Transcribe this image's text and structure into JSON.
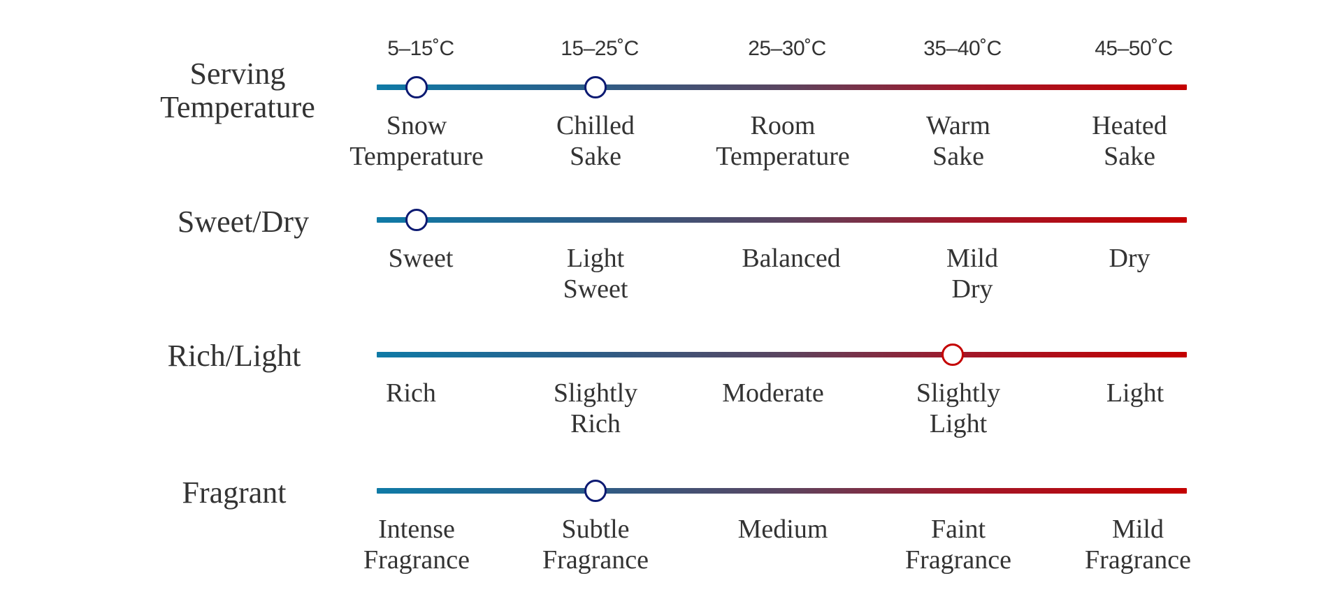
{
  "colors": {
    "gradient_start": "#0f7aa6",
    "gradient_end": "#c40000",
    "marker_blue": "#0c1a72",
    "marker_red": "#c40000",
    "text": "#333333"
  },
  "rows": [
    {
      "title": "Serving\nTemperature",
      "temps": [
        "5–15˚C",
        "15–25˚C",
        "25–30˚C",
        "35–40˚C",
        "45–50˚C"
      ],
      "labels": [
        "Snow\nTemperature",
        "Chilled\nSake",
        "Room\nTemperature",
        "Warm\nSake",
        "Heated\nSake"
      ],
      "selected": [
        0,
        1
      ]
    },
    {
      "title": "Sweet/Dry",
      "labels": [
        "Sweet",
        "Light\nSweet",
        "Balanced",
        "Mild\nDry",
        "Dry"
      ],
      "selected": [
        0
      ]
    },
    {
      "title": "Rich/Light",
      "labels": [
        "Rich",
        "Slightly\nRich",
        "Moderate",
        "Slightly\nLight",
        "Light"
      ],
      "selected": [
        3
      ]
    },
    {
      "title": "Fragrant",
      "labels": [
        "Intense\nFragrance",
        "Subtle\nFragrance",
        "Medium",
        "Faint\nFragrance",
        "Mild\nFragrance"
      ],
      "selected": [
        1
      ]
    }
  ]
}
